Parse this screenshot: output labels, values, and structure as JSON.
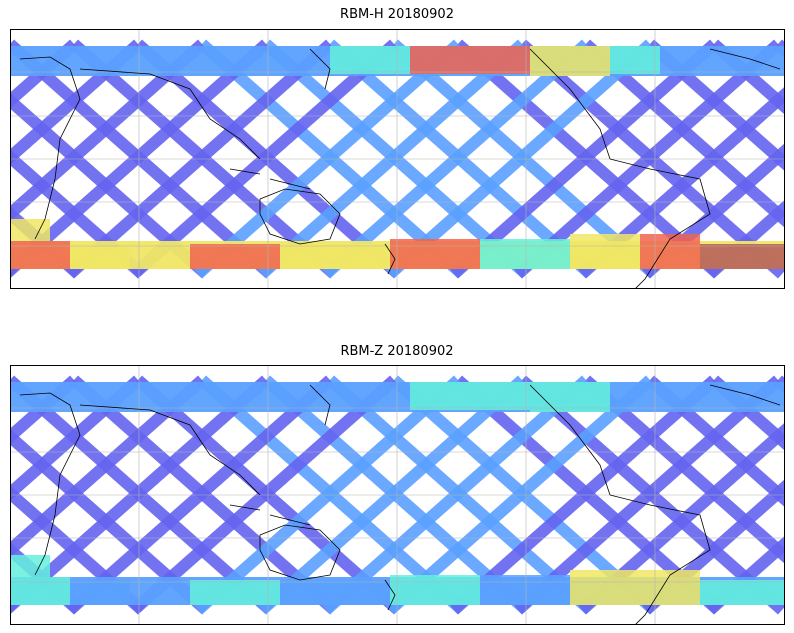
{
  "panels": [
    {
      "title": "RBM-H 20180902",
      "colormap": "jet",
      "lat_range": [
        -60,
        60
      ],
      "lon_range": [
        -180,
        180
      ],
      "central_longitude": 180,
      "grid": true,
      "coastlines": true,
      "high_band_lat": "southern high latitudes and north-central Pacific"
    },
    {
      "title": "RBM-Z 20180902",
      "colormap": "jet",
      "lat_range": [
        -60,
        60
      ],
      "lon_range": [
        -180,
        180
      ],
      "central_longitude": 180,
      "grid": true,
      "coastlines": true
    }
  ],
  "colors": {
    "low": "#6464f0",
    "mid_low": "#5aa0ff",
    "mid": "#64f0dc",
    "mid_high": "#f0e664",
    "high": "#f06450",
    "max": "#b45a5a",
    "coastline": "#000000",
    "gridline": "#b4b4b4"
  }
}
